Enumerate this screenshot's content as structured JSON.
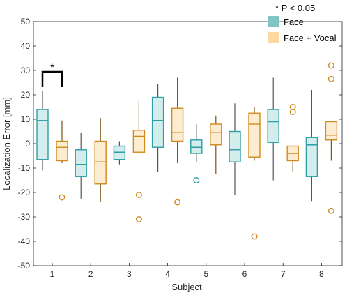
{
  "chart_data": {
    "type": "boxplot",
    "xlabel": "Subject",
    "ylabel": "Localization Error [mm]",
    "ylim": [
      -50,
      50
    ],
    "yticks": [
      -50,
      -40,
      -30,
      -20,
      -10,
      0,
      10,
      20,
      30,
      40,
      50
    ],
    "categories": [
      "1",
      "2",
      "3",
      "4",
      "5",
      "6",
      "7",
      "8"
    ],
    "legend": {
      "note": "*  P < 0.05",
      "placement": "top-right",
      "entries": [
        {
          "name": "Face",
          "fill": "#7fc6c4",
          "edge": "#2e9fa6"
        },
        {
          "name": "Face + Vocal",
          "fill": "#fdd9a0",
          "edge": "#d08a1e"
        }
      ]
    },
    "significance": [
      {
        "subject": "1",
        "label": "*"
      }
    ],
    "series": [
      {
        "name": "Face",
        "fill": "#d3ecec",
        "edge": "#2e9fa6",
        "whisker_color": "#555555",
        "boxes": [
          {
            "subject": "1",
            "whislo": -11,
            "q1": -6.5,
            "med": 9.5,
            "q3": 14,
            "whishi": 21.5,
            "fliers": []
          },
          {
            "subject": "2",
            "whislo": -22.5,
            "q1": -13.5,
            "med": -8.5,
            "q3": -2.5,
            "whishi": 4.5,
            "fliers": []
          },
          {
            "subject": "3",
            "whislo": -8.5,
            "q1": -6.5,
            "med": -3.5,
            "q3": -1,
            "whishi": 1,
            "fliers": []
          },
          {
            "subject": "4",
            "whislo": -11.5,
            "q1": -1.5,
            "med": 9.5,
            "q3": 19,
            "whishi": 24.5,
            "fliers": []
          },
          {
            "subject": "5",
            "whislo": -7.5,
            "q1": -4,
            "med": -1.5,
            "q3": 1.5,
            "whishi": 8,
            "fliers": [
              -15
            ]
          },
          {
            "subject": "6",
            "whislo": -21,
            "q1": -7.5,
            "med": -2.5,
            "q3": 5,
            "whishi": 16.5,
            "fliers": []
          },
          {
            "subject": "7",
            "whislo": -15,
            "q1": 0.5,
            "med": 9,
            "q3": 14,
            "whishi": 27,
            "fliers": []
          },
          {
            "subject": "8",
            "whislo": -23.5,
            "q1": -13.5,
            "med": -0.5,
            "q3": 2.5,
            "whishi": 22,
            "fliers": []
          }
        ]
      },
      {
        "name": "Face + Vocal",
        "fill": "#fdecd0",
        "edge": "#d08a1e",
        "whisker_color": "#7a5418",
        "boxes": [
          {
            "subject": "1",
            "whislo": -8,
            "q1": -7,
            "med": -1.5,
            "q3": 1,
            "whishi": 9.5,
            "fliers": [
              -22
            ]
          },
          {
            "subject": "2",
            "whislo": -24,
            "q1": -16.5,
            "med": -7.5,
            "q3": 1,
            "whishi": 10.5,
            "fliers": []
          },
          {
            "subject": "3",
            "whislo": -3.5,
            "q1": -3.5,
            "med": 3,
            "q3": 5.5,
            "whishi": 17.5,
            "fliers": [
              -21,
              -31
            ]
          },
          {
            "subject": "4",
            "whislo": -8,
            "q1": 1,
            "med": 4.5,
            "q3": 14.5,
            "whishi": 27,
            "fliers": [
              -24
            ]
          },
          {
            "subject": "5",
            "whislo": -12.5,
            "q1": -0.5,
            "med": 4.5,
            "q3": 8,
            "whishi": 11.5,
            "fliers": []
          },
          {
            "subject": "6",
            "whislo": -7,
            "q1": -5.5,
            "med": 8,
            "q3": 12.5,
            "whishi": 15,
            "fliers": [
              -38
            ]
          },
          {
            "subject": "7",
            "whislo": -11.5,
            "q1": -7,
            "med": -4,
            "q3": -1,
            "whishi": -1,
            "fliers": [
              13,
              15
            ]
          },
          {
            "subject": "8",
            "whislo": -7,
            "q1": 1.5,
            "med": 3.5,
            "q3": 9,
            "whishi": 9,
            "fliers": [
              26.5,
              32,
              -27.5
            ]
          }
        ]
      }
    ]
  }
}
